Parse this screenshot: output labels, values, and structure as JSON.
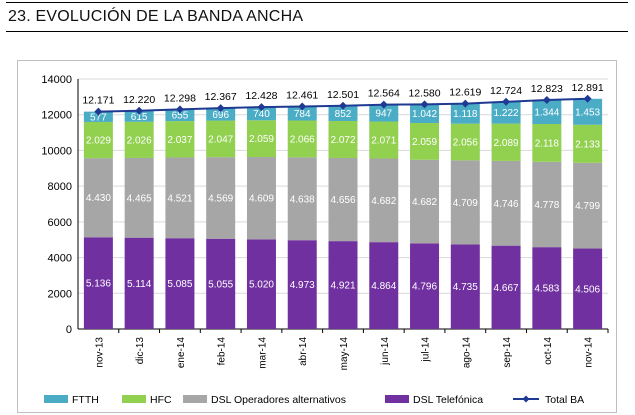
{
  "header": {
    "title": "23. EVOLUCIÓN DE LA BANDA ANCHA"
  },
  "colors": {
    "ftth": "#4bacc6",
    "hfc": "#92d050",
    "dsl_alt": "#a6a6a6",
    "dsl_tel": "#7030a0",
    "total": "#1f3a93",
    "grid": "#d9d9d9",
    "axis": "#000000"
  },
  "chart_data": {
    "type": "bar",
    "stacked": true,
    "title": "",
    "xlabel": "",
    "ylabel": "",
    "ylim": [
      0,
      14000
    ],
    "yticks": [
      "0",
      "2000",
      "4000",
      "6000",
      "8000",
      "10000",
      "12000",
      "14000"
    ],
    "categories": [
      "nov-13",
      "dic-13",
      "ene-14",
      "feb-14",
      "mar-14",
      "abr-14",
      "may-14",
      "jun-14",
      "jul-14",
      "ago-14",
      "sep-14",
      "oct-14",
      "nov-14"
    ],
    "series": [
      {
        "name": "DSL Telefónica",
        "key": "dsl_tel",
        "values": [
          5136,
          5114,
          5085,
          5055,
          5020,
          4973,
          4921,
          4864,
          4796,
          4735,
          4667,
          4583,
          4506
        ],
        "labels": [
          "5.136",
          "5.114",
          "5.085",
          "5.055",
          "5.020",
          "4.973",
          "4.921",
          "4.864",
          "4.796",
          "4.735",
          "4.667",
          "4.583",
          "4.506"
        ]
      },
      {
        "name": "DSL Operadores alternativos",
        "key": "dsl_alt",
        "values": [
          4430,
          4465,
          4521,
          4569,
          4609,
          4638,
          4656,
          4682,
          4682,
          4709,
          4746,
          4778,
          4799
        ],
        "labels": [
          "4.430",
          "4.465",
          "4.521",
          "4.569",
          "4.609",
          "4.638",
          "4.656",
          "4.682",
          "4.682",
          "4.709",
          "4.746",
          "4.778",
          "4.799"
        ]
      },
      {
        "name": "HFC",
        "key": "hfc",
        "values": [
          2029,
          2026,
          2037,
          2047,
          2059,
          2066,
          2072,
          2071,
          2059,
          2056,
          2089,
          2118,
          2133
        ],
        "labels": [
          "2.029",
          "2.026",
          "2.037",
          "2.047",
          "2.059",
          "2.066",
          "2.072",
          "2.071",
          "2.059",
          "2.056",
          "2.089",
          "2.118",
          "2.133"
        ]
      },
      {
        "name": "FTTH",
        "key": "ftth",
        "values": [
          577,
          615,
          655,
          696,
          740,
          784,
          852,
          947,
          1042,
          1118,
          1222,
          1344,
          1453
        ],
        "labels": [
          "577",
          "615",
          "655",
          "696",
          "740",
          "784",
          "852",
          "947",
          "1.042",
          "1.118",
          "1.222",
          "1.344",
          "1.453"
        ]
      }
    ],
    "total_line": {
      "name": "Total BA",
      "values": [
        12171,
        12220,
        12298,
        12367,
        12428,
        12461,
        12501,
        12564,
        12580,
        12619,
        12724,
        12823,
        12891
      ],
      "labels": [
        "12.171",
        "12.220",
        "12.298",
        "12.367",
        "12.428",
        "12.461",
        "12.501",
        "12.564",
        "12.580",
        "12.619",
        "12.724",
        "12.823",
        "12.891"
      ]
    },
    "legend": {
      "position": "bottom",
      "entries": [
        "FTTH",
        "HFC",
        "DSL Operadores alternativos",
        "DSL Telefónica",
        "Total BA"
      ]
    }
  }
}
